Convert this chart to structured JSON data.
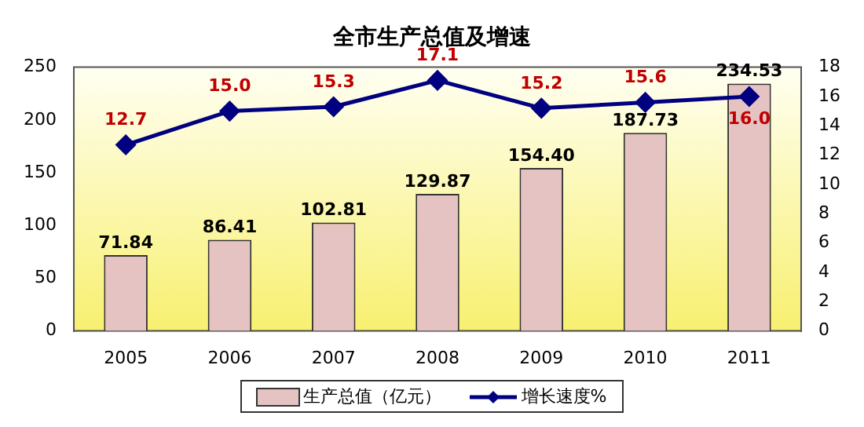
{
  "chart_data": {
    "type": "bar",
    "title": "全市生产总值及增速",
    "categories": [
      "2005",
      "2006",
      "2007",
      "2008",
      "2009",
      "2010",
      "2011"
    ],
    "series": [
      {
        "name": "生产总值（亿元）",
        "color": "#e6c3c3",
        "values": [
          71.84,
          86.41,
          102.81,
          129.87,
          154.4,
          187.73,
          234.53
        ],
        "value_labels": [
          "71.84",
          "86.41",
          "102.81",
          "129.87",
          "154.40",
          "187.73",
          "234.53"
        ]
      },
      {
        "name": "增长速度%",
        "type": "line",
        "axis": "y2",
        "color": "#000080",
        "values": [
          12.7,
          15.0,
          15.3,
          17.1,
          15.2,
          15.6,
          16.0
        ],
        "value_labels": [
          "12.7",
          "15.0",
          "15.3",
          "17.1",
          "15.2",
          "15.6",
          "16.0"
        ]
      }
    ],
    "ylim": [
      0,
      250
    ],
    "yticks": [
      0,
      50,
      100,
      150,
      200,
      250
    ],
    "y2lim": [
      0,
      18
    ],
    "y2ticks": [
      0,
      2,
      4,
      6,
      8,
      10,
      12,
      14,
      16,
      18
    ],
    "grid": false,
    "legend": "bottom",
    "marker": "diamond",
    "line_style": "solid"
  }
}
